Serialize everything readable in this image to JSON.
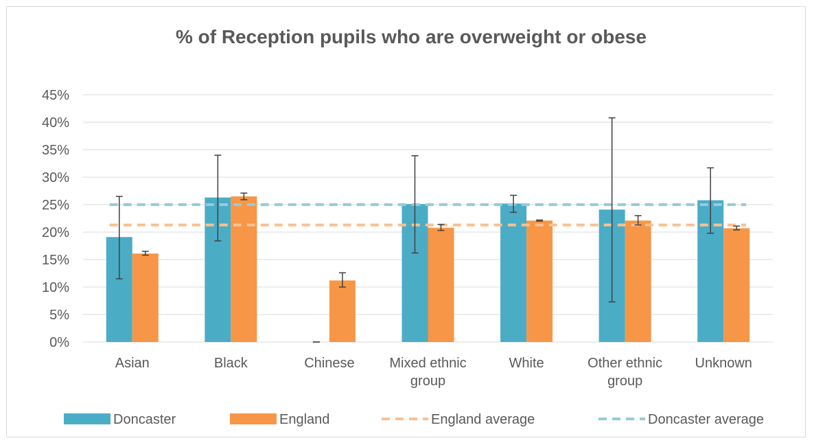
{
  "chart_data": {
    "type": "bar",
    "title": "% of Reception pupils who are overweight or obese",
    "xlabel": "",
    "ylabel": "",
    "ylim": [
      0,
      0.45
    ],
    "yticks": [
      "0%",
      "5%",
      "10%",
      "15%",
      "20%",
      "25%",
      "30%",
      "35%",
      "40%",
      "45%"
    ],
    "grid": true,
    "legend_position": "bottom",
    "categories": [
      [
        "Asian"
      ],
      [
        "Black"
      ],
      [
        "Chinese"
      ],
      [
        "Mixed ethnic",
        "group"
      ],
      [
        "White"
      ],
      [
        "Other ethnic",
        "group"
      ],
      [
        "Unknown"
      ]
    ],
    "series": [
      {
        "name": "Doncaster",
        "color": "#4bacc6",
        "values": [
          0.191,
          0.263,
          0.0,
          0.251,
          0.252,
          0.241,
          0.258
        ],
        "error_low": [
          0.115,
          0.184,
          0.0,
          0.162,
          0.236,
          0.073,
          0.198
        ],
        "error_high": [
          0.265,
          0.34,
          0.0,
          0.339,
          0.267,
          0.408,
          0.317
        ]
      },
      {
        "name": "England",
        "color": "#f79646",
        "values": [
          0.161,
          0.265,
          0.112,
          0.208,
          0.221,
          0.221,
          0.207
        ],
        "error_low": [
          0.158,
          0.259,
          0.1,
          0.203,
          0.22,
          0.213,
          0.204
        ],
        "error_high": [
          0.165,
          0.271,
          0.126,
          0.214,
          0.222,
          0.23,
          0.211
        ]
      }
    ],
    "reference_lines": [
      {
        "name": "England average",
        "value": 0.213,
        "color": "#fac090",
        "style": "dashed"
      },
      {
        "name": "Doncaster average",
        "value": 0.25,
        "color": "#92cddc",
        "style": "dashed"
      }
    ]
  }
}
